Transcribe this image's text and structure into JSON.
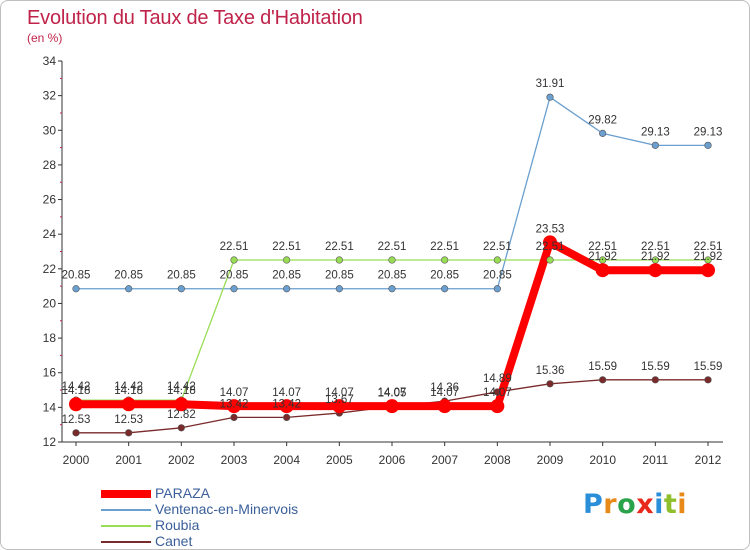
{
  "chart_data": {
    "type": "line",
    "title": "Evolution du Taux de Taxe d'Habitation",
    "subtitle": "(en %)",
    "x": [
      "2000",
      "2001",
      "2002",
      "2003",
      "2004",
      "2005",
      "2006",
      "2007",
      "2008",
      "2009",
      "2010",
      "2011",
      "2012"
    ],
    "ylim": [
      12,
      34
    ],
    "yticks": [
      12,
      14,
      16,
      18,
      20,
      22,
      24,
      26,
      28,
      30,
      32,
      34
    ],
    "grid": false,
    "legend_position": "bottom-left",
    "series": [
      {
        "name": "PARAZA",
        "color": "#ff0000",
        "values": [
          14.18,
          14.18,
          14.18,
          14.07,
          14.07,
          14.07,
          14.07,
          14.07,
          14.07,
          23.53,
          21.92,
          21.92,
          21.92
        ],
        "labels": [
          "14.18",
          "14.18",
          "14.18",
          "14.07",
          "14.07",
          "14.07",
          "14.07",
          "14.07",
          "14.07",
          "23.53",
          "21.92",
          "21.92",
          "21.92"
        ]
      },
      {
        "name": "Ventenac-en-Minervois",
        "color": "#6a9fd0",
        "values": [
          20.85,
          20.85,
          20.85,
          20.85,
          20.85,
          20.85,
          20.85,
          20.85,
          20.85,
          31.91,
          29.82,
          29.13,
          29.13
        ],
        "labels": [
          "20.85",
          "20.85",
          "20.85",
          "20.85",
          "20.85",
          "20.85",
          "20.85",
          "20.85",
          "20.85",
          "31.91",
          "29.82",
          "29.13",
          "29.13"
        ]
      },
      {
        "name": "Roubia",
        "color": "#99dd55",
        "values": [
          14.42,
          14.42,
          14.42,
          22.51,
          22.51,
          22.51,
          22.51,
          22.51,
          22.51,
          22.51,
          22.51,
          22.51,
          22.51
        ],
        "labels": [
          "14.42",
          "14.42",
          "14.42",
          "22.51",
          "22.51",
          "22.51",
          "22.51",
          "22.51",
          "22.51",
          "22.51",
          "22.51",
          "22.51",
          "22.51"
        ]
      },
      {
        "name": "Canet",
        "color": "#7a2a2a",
        "values": [
          12.53,
          12.53,
          12.82,
          13.42,
          13.42,
          13.67,
          14.05,
          14.36,
          14.89,
          15.36,
          15.59,
          15.59,
          15.59
        ],
        "labels": [
          "12.53",
          "12.53",
          "12.82",
          "13.42",
          "13.42",
          "13.67",
          "14.05",
          "14.36",
          "14.89",
          "15.36",
          "15.59",
          "15.59",
          "15.59"
        ]
      }
    ]
  },
  "logo": {
    "text": "Proxiti",
    "letters": [
      "P",
      "r",
      "o",
      "x",
      "i",
      "t",
      "i"
    ],
    "colors": [
      "#2a8fd8",
      "#e88a1a",
      "#2aa34a",
      "#e8281a",
      "#2a8fd8",
      "#8fbf2a",
      "#e88a1a"
    ]
  }
}
